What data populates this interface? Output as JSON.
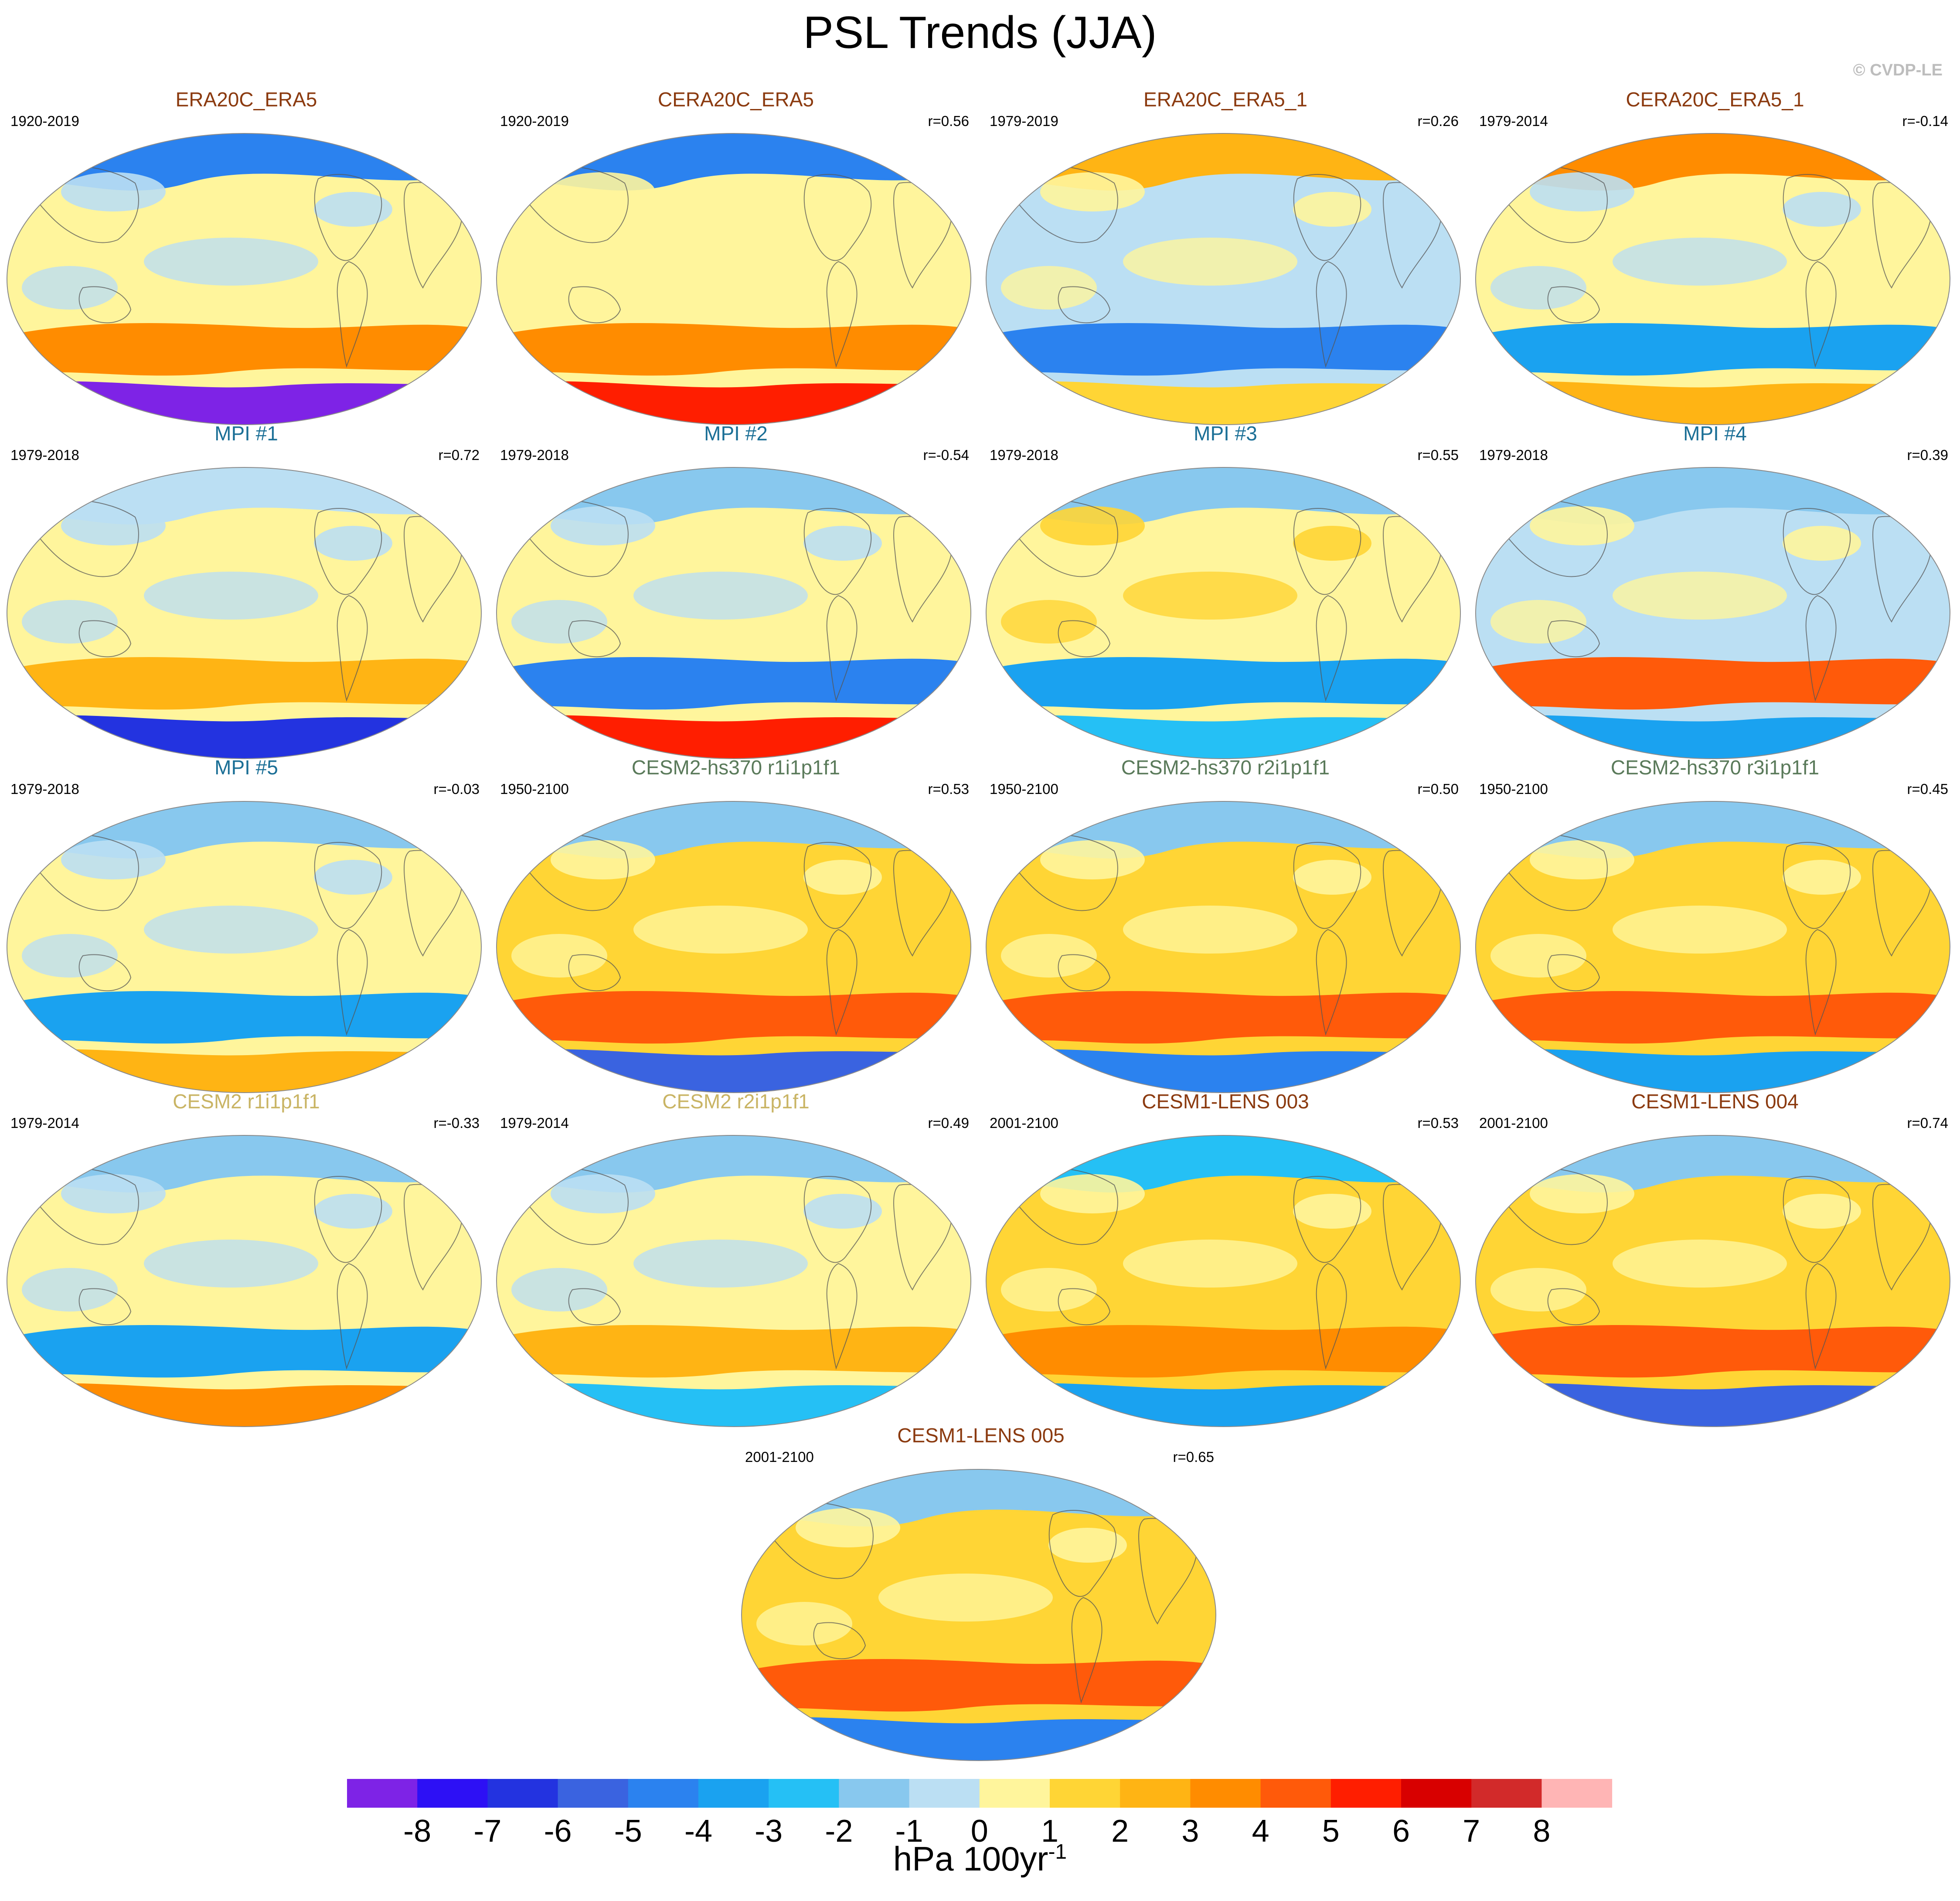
{
  "title": "PSL Trends (JJA)",
  "credit": "© CVDP-LE",
  "units": {
    "main": "hPa 100yr",
    "exponent": "-1"
  },
  "colorbar": {
    "labels": [
      "-8",
      "-7",
      "-6",
      "-5",
      "-4",
      "-3",
      "-2",
      "-1",
      "0",
      "1",
      "2",
      "3",
      "4",
      "5",
      "6",
      "7",
      "8"
    ],
    "colors": [
      "#7e23e6",
      "#2d10f5",
      "#2333e0",
      "#3a63e0",
      "#2b82ef",
      "#1aa2f0",
      "#25c0f5",
      "#88c8ee",
      "#bbdff3",
      "#fff59c",
      "#ffd535",
      "#ffb414",
      "#ff8c00",
      "#ff5a0a",
      "#ff1e00",
      "#d80000",
      "#d22a2a",
      "#ffb5b5"
    ]
  },
  "palette": {
    "n8": "#7e23e6",
    "n7": "#2d10f5",
    "n6": "#2333e0",
    "n5": "#3a63e0",
    "n4": "#2b82ef",
    "n3": "#1aa2f0",
    "n2": "#25c0f5",
    "n1": "#88c8ee",
    "n0": "#bbdff3",
    "p0": "#fff59c",
    "p1": "#ffd535",
    "p2": "#ffb414",
    "p3": "#ff8c00",
    "p4": "#ff5a0a",
    "p5": "#ff1e00",
    "p6": "#d80000"
  },
  "panels": [
    {
      "title": "ERA20C_ERA5",
      "title_color": "#8b3a0f",
      "period": "1920-2019",
      "corr": "",
      "base": "p0",
      "north": "n4",
      "south": "n8",
      "belt": "p3",
      "mid": "n0"
    },
    {
      "title": "CERA20C_ERA5",
      "title_color": "#8b3a0f",
      "period": "1920-2019",
      "corr": "r=0.56",
      "base": "p0",
      "north": "n4",
      "south": "p5",
      "belt": "p3",
      "mid": "p0"
    },
    {
      "title": "ERA20C_ERA5_1",
      "title_color": "#8b3a0f",
      "period": "1979-2019",
      "corr": "r=0.26",
      "base": "n0",
      "north": "p2",
      "south": "p1",
      "belt": "n4",
      "mid": "p0"
    },
    {
      "title": "CERA20C_ERA5_1",
      "title_color": "#8b3a0f",
      "period": "1979-2014",
      "corr": "r=-0.14",
      "base": "p0",
      "north": "p3",
      "south": "p2",
      "belt": "n3",
      "mid": "n0"
    },
    {
      "title": "MPI #1",
      "title_color": "#1b6f96",
      "period": "1979-2018",
      "corr": "r=0.72",
      "base": "p0",
      "north": "n0",
      "south": "n6",
      "belt": "p2",
      "mid": "n0"
    },
    {
      "title": "MPI #2",
      "title_color": "#1b6f96",
      "period": "1979-2018",
      "corr": "r=-0.54",
      "base": "p0",
      "north": "n1",
      "south": "p5",
      "belt": "n4",
      "mid": "n0"
    },
    {
      "title": "MPI #3",
      "title_color": "#1b6f96",
      "period": "1979-2018",
      "corr": "r=0.55",
      "base": "p0",
      "north": "n1",
      "south": "n2",
      "belt": "n3",
      "mid": "p1"
    },
    {
      "title": "MPI #4",
      "title_color": "#1b6f96",
      "period": "1979-2018",
      "corr": "r=0.39",
      "base": "n0",
      "north": "n1",
      "south": "n3",
      "belt": "p4",
      "mid": "p0"
    },
    {
      "title": "MPI #5",
      "title_color": "#1b6f96",
      "period": "1979-2018",
      "corr": "r=-0.03",
      "base": "p0",
      "north": "n1",
      "south": "p2",
      "belt": "n3",
      "mid": "n0"
    },
    {
      "title": "CESM2-hs370 r1i1p1f1",
      "title_color": "#5a7a5a",
      "period": "1950-2100",
      "corr": "r=0.53",
      "base": "p1",
      "north": "n1",
      "south": "n5",
      "belt": "p4",
      "mid": "p0"
    },
    {
      "title": "CESM2-hs370 r2i1p1f1",
      "title_color": "#5a7a5a",
      "period": "1950-2100",
      "corr": "r=0.50",
      "base": "p1",
      "north": "n1",
      "south": "n4",
      "belt": "p4",
      "mid": "p0"
    },
    {
      "title": "CESM2-hs370 r3i1p1f1",
      "title_color": "#5a7a5a",
      "period": "1950-2100",
      "corr": "r=0.45",
      "base": "p1",
      "north": "n1",
      "south": "n3",
      "belt": "p4",
      "mid": "p0"
    },
    {
      "title": "CESM2 r1i1p1f1",
      "title_color": "#c9b464",
      "period": "1979-2014",
      "corr": "r=-0.33",
      "base": "p0",
      "north": "n1",
      "south": "p3",
      "belt": "n3",
      "mid": "n0"
    },
    {
      "title": "CESM2 r2i1p1f1",
      "title_color": "#c9b464",
      "period": "1979-2014",
      "corr": "r=0.49",
      "base": "p0",
      "north": "n1",
      "south": "n2",
      "belt": "p2",
      "mid": "n0"
    },
    {
      "title": "CESM1-LENS 003",
      "title_color": "#8b3a0f",
      "period": "2001-2100",
      "corr": "r=0.53",
      "base": "p1",
      "north": "n2",
      "south": "n3",
      "belt": "p3",
      "mid": "p0"
    },
    {
      "title": "CESM1-LENS 004",
      "title_color": "#8b3a0f",
      "period": "2001-2100",
      "corr": "r=0.74",
      "base": "p1",
      "north": "n1",
      "south": "n5",
      "belt": "p4",
      "mid": "p0"
    },
    {
      "title": "CESM1-LENS 005",
      "title_color": "#8b3a0f",
      "period": "2001-2100",
      "corr": "r=0.65",
      "base": "p1",
      "north": "n1",
      "south": "n4",
      "belt": "p4",
      "mid": "p0"
    }
  ]
}
